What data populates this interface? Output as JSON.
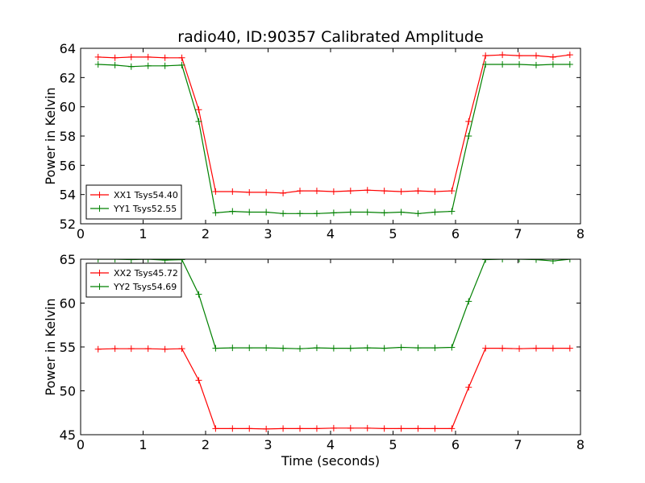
{
  "figure": {
    "title": "radio40, ID:90357 Calibrated Amplitude"
  },
  "chart_data": [
    {
      "type": "line",
      "title": "radio40, ID:90357 Calibrated Amplitude",
      "xlabel": "",
      "ylabel": "Power in Kelvin",
      "xlim": [
        0,
        8
      ],
      "ylim": [
        52,
        64
      ],
      "xticks": [
        "0",
        "1",
        "2",
        "3",
        "4",
        "5",
        "6",
        "7",
        "8"
      ],
      "yticks": [
        "52",
        "54",
        "56",
        "58",
        "60",
        "62",
        "64"
      ],
      "grid": false,
      "legend_position": "lower-left",
      "x": [
        0.28,
        0.55,
        0.81,
        1.08,
        1.35,
        1.62,
        1.89,
        2.16,
        2.43,
        2.7,
        2.97,
        3.24,
        3.51,
        3.78,
        4.05,
        4.32,
        4.59,
        4.86,
        5.13,
        5.4,
        5.67,
        5.94,
        6.21,
        6.48,
        6.75,
        7.02,
        7.29,
        7.56,
        7.83
      ],
      "series": [
        {
          "name": "XX1 Tsys54.40",
          "color": "#ff0000",
          "values": [
            63.4,
            63.35,
            63.4,
            63.4,
            63.35,
            63.35,
            59.8,
            54.2,
            54.2,
            54.15,
            54.15,
            54.1,
            54.25,
            54.25,
            54.2,
            54.25,
            54.3,
            54.25,
            54.2,
            54.25,
            54.2,
            54.25,
            59.0,
            63.5,
            63.55,
            63.5,
            63.5,
            63.4,
            63.55
          ]
        },
        {
          "name": "YY1 Tsys52.55",
          "color": "#008000",
          "values": [
            62.9,
            62.85,
            62.75,
            62.8,
            62.8,
            62.85,
            59.0,
            52.75,
            52.85,
            52.8,
            52.8,
            52.7,
            52.7,
            52.7,
            52.75,
            52.8,
            52.8,
            52.75,
            52.8,
            52.7,
            52.8,
            52.85,
            58.0,
            62.9,
            62.9,
            62.9,
            62.85,
            62.9,
            62.9
          ]
        }
      ]
    },
    {
      "type": "line",
      "title": "",
      "xlabel": "Time (seconds)",
      "ylabel": "Power in Kelvin",
      "xlim": [
        0,
        8
      ],
      "ylim": [
        45,
        65
      ],
      "xticks": [
        "0",
        "1",
        "2",
        "3",
        "4",
        "5",
        "6",
        "7",
        "8"
      ],
      "yticks": [
        "45",
        "50",
        "55",
        "60",
        "65"
      ],
      "grid": false,
      "legend_position": "upper-left",
      "x": [
        0.28,
        0.55,
        0.81,
        1.08,
        1.35,
        1.62,
        1.89,
        2.16,
        2.43,
        2.7,
        2.97,
        3.24,
        3.51,
        3.78,
        4.05,
        4.32,
        4.59,
        4.86,
        5.13,
        5.4,
        5.67,
        5.94,
        6.21,
        6.48,
        6.75,
        7.02,
        7.29,
        7.56,
        7.83
      ],
      "series": [
        {
          "name": "XX2 Tsys45.72",
          "color": "#ff0000",
          "values": [
            54.75,
            54.8,
            54.8,
            54.8,
            54.75,
            54.8,
            51.2,
            45.7,
            45.7,
            45.7,
            45.65,
            45.7,
            45.7,
            45.7,
            45.75,
            45.75,
            45.75,
            45.7,
            45.7,
            45.7,
            45.7,
            45.7,
            50.4,
            54.85,
            54.85,
            54.8,
            54.85,
            54.85,
            54.85
          ]
        },
        {
          "name": "YY2 Tsys54.69",
          "color": "#008000",
          "values": [
            65.0,
            65.0,
            64.95,
            65.0,
            64.9,
            64.95,
            61.0,
            54.85,
            54.9,
            54.9,
            54.9,
            54.85,
            54.8,
            54.9,
            54.85,
            54.85,
            54.9,
            54.85,
            54.95,
            54.9,
            54.9,
            54.95,
            60.2,
            64.95,
            65.0,
            65.0,
            64.95,
            64.8,
            65.0
          ]
        }
      ]
    }
  ]
}
